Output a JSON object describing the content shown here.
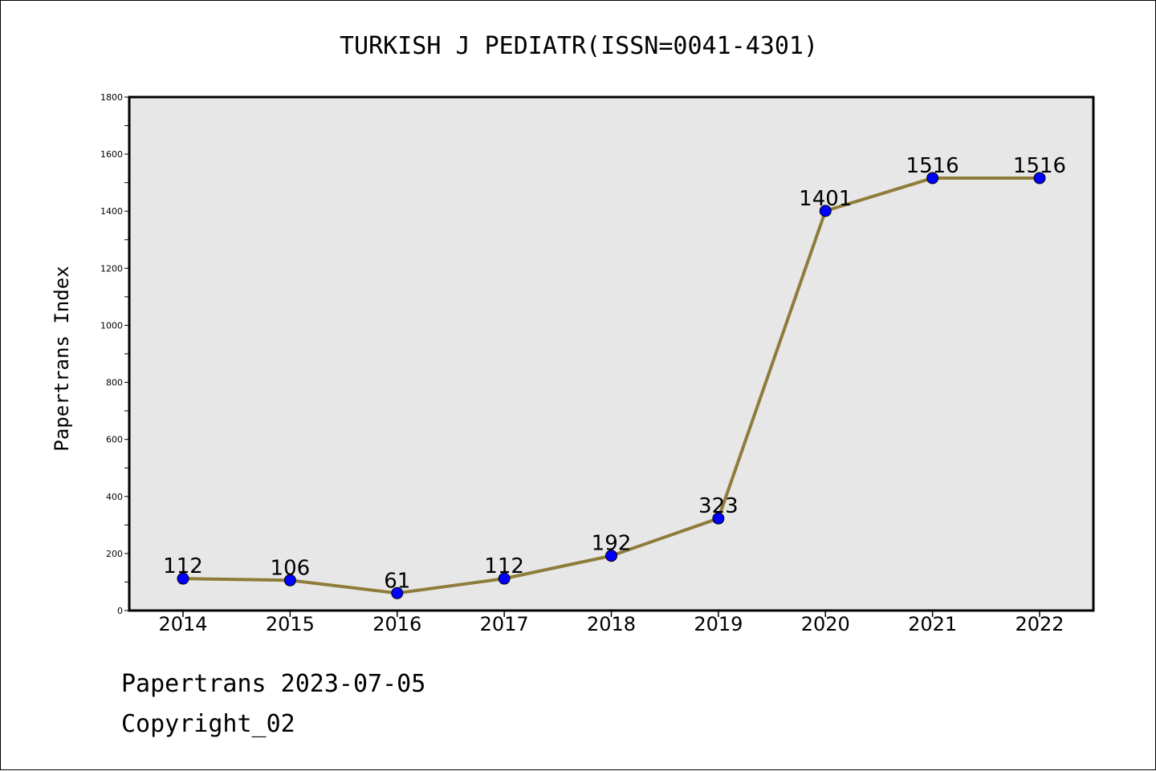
{
  "chart_data": {
    "type": "line",
    "title": "TURKISH J PEDIATR(ISSN=0041-4301)",
    "ylabel": "Papertrans Index",
    "xlabel": "",
    "categories": [
      "2014",
      "2015",
      "2016",
      "2017",
      "2018",
      "2019",
      "2020",
      "2021",
      "2022"
    ],
    "values": [
      112,
      106,
      61,
      112,
      192,
      323,
      1401,
      1516,
      1516
    ],
    "data_labels": [
      "112",
      "106",
      "61",
      "112",
      "192",
      "323",
      "1401",
      "1516",
      "1516"
    ],
    "ylim": [
      0,
      1800
    ],
    "yticks": [
      0,
      200,
      400,
      600,
      800,
      1000,
      1200,
      1400,
      1600,
      1800
    ],
    "ytick_labels": [
      "0",
      "200",
      "400",
      "600",
      "800",
      "1000",
      "1200",
      "1400",
      "1600",
      "1800"
    ],
    "grid": false,
    "line_color": "#8e7c3a",
    "marker_color": "#0000ff",
    "plot_background": "#e7e7e7"
  },
  "footer": {
    "line1": "Papertrans 2023-07-05",
    "line2": "Copyright_02"
  }
}
